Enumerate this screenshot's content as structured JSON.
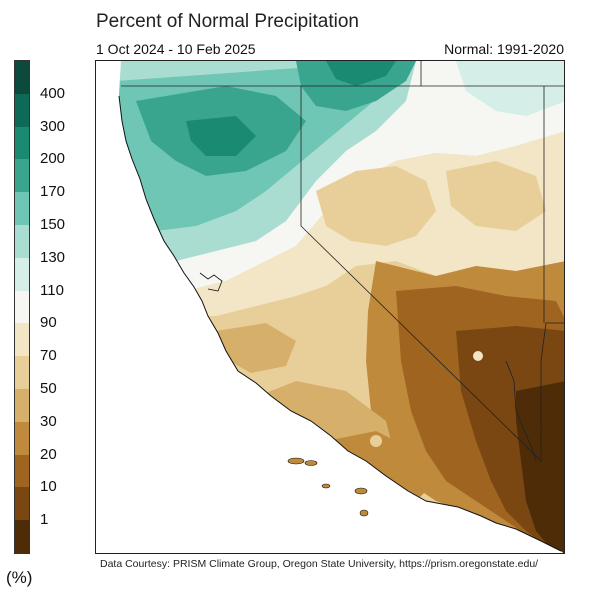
{
  "title": "Percent of Normal Precipitation",
  "date_range": "1 Oct 2024 - 10 Feb 2025",
  "normal_period": "Normal: 1991-2020",
  "legend": {
    "unit": "(%)",
    "labels": [
      "400",
      "300",
      "200",
      "170",
      "150",
      "130",
      "110",
      "90",
      "70",
      "50",
      "30",
      "20",
      "10",
      "1"
    ],
    "colors": [
      "#0b4a3d",
      "#0e6a58",
      "#1a8a73",
      "#3aa58e",
      "#6fc6b4",
      "#a9ddd2",
      "#d5eee8",
      "#f6f6f2",
      "#f3e6c6",
      "#e8cf99",
      "#d6b06b",
      "#c08a3c",
      "#9f6420",
      "#7a4712",
      "#4f2c08"
    ]
  },
  "credit": "Data Courtesy: PRISM Climate Group, Oregon State University, https://prism.oregonstate.edu/"
}
